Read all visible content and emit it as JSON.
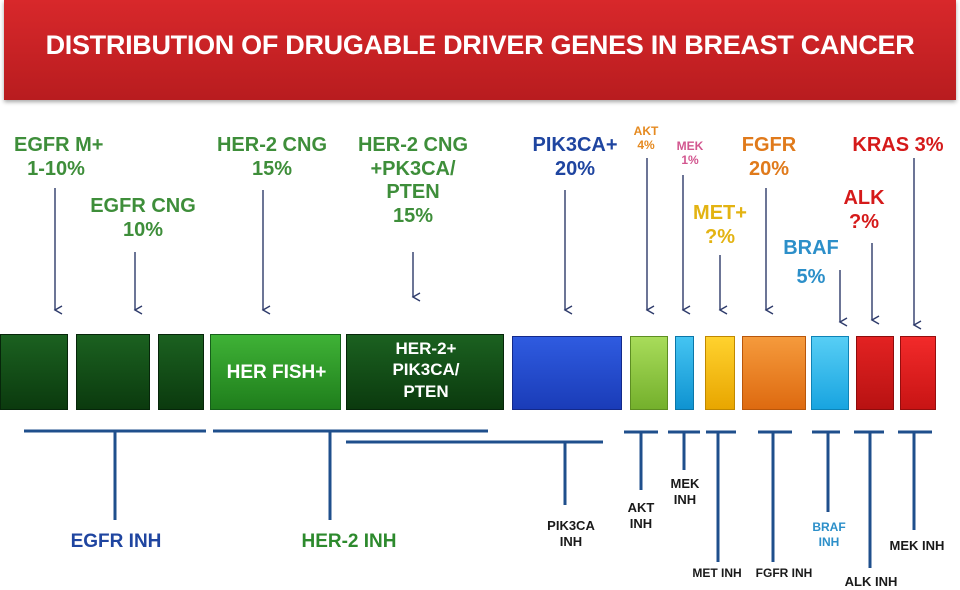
{
  "title": "DISTRIBUTION OF DRUGABLE DRIVER GENES IN BREAST CANCER",
  "genes": {
    "egfr_m": [
      "EGFR M+",
      "1-10%"
    ],
    "egfr_cng": [
      "EGFR CNG",
      "10%"
    ],
    "her2_cng": [
      "HER-2 CNG",
      "15%"
    ],
    "her2_pik": [
      "HER-2 CNG",
      "+PK3CA/",
      "PTEN",
      "15%"
    ],
    "pik3ca": [
      "PIK3CA+",
      "20%"
    ],
    "akt": [
      "AKT",
      "4%"
    ],
    "mek": [
      "MEK",
      "1%"
    ],
    "met": [
      "MET+",
      "?%"
    ],
    "fgfr": [
      "FGFR",
      "20%"
    ],
    "braf": [
      "BRAF",
      "5%"
    ],
    "kras": [
      "KRAS 3%"
    ],
    "alk": [
      "ALK",
      "?%"
    ]
  },
  "blocks": {
    "her_fish": "HER FISH+",
    "her2_pik": [
      "HER-2+",
      "PIK3CA/",
      "PTEN"
    ]
  },
  "inhibitors": {
    "egfr": "EGFR INH",
    "her2": "HER-2 INH",
    "pik3ca": [
      "PIK3CA",
      "INH"
    ],
    "akt": [
      "AKT",
      "INH"
    ],
    "mek": [
      "MEK",
      "INH"
    ],
    "met": "MET INH",
    "fgfr": "FGFR INH",
    "braf": [
      "BRAF",
      "INH"
    ],
    "alk": "ALK INH",
    "mek2": "MEK INH"
  },
  "colors": {
    "title_bg": "#c8232a",
    "dark_green": "#0e4a12",
    "green": "#2d9a2a",
    "blue": "#1f45c8",
    "light_green": "#8dc63f",
    "cyan": "#1ca9e0",
    "yellow": "#f5b800",
    "orange": "#ea7a1c",
    "red": "#e01818",
    "line_blue": "#1f4f8c"
  }
}
